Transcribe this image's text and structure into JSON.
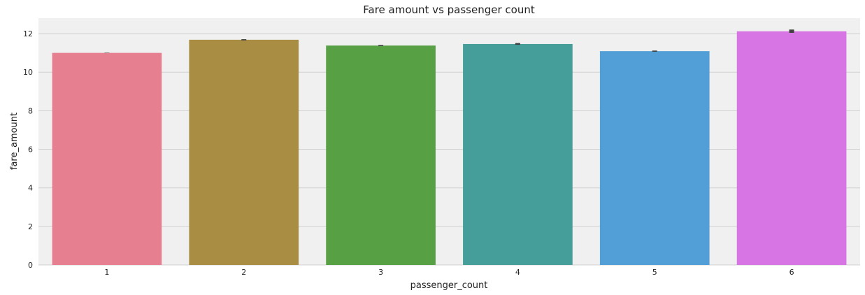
{
  "chart_data": {
    "type": "bar",
    "title": "Fare amount vs passenger count",
    "xlabel": "passenger_count",
    "ylabel": "fare_amount",
    "categories": [
      "1",
      "2",
      "3",
      "4",
      "5",
      "6"
    ],
    "values": [
      11.0,
      11.68,
      11.38,
      11.46,
      11.09,
      12.12
    ],
    "error_bars": [
      [
        10.99,
        11.01
      ],
      [
        11.65,
        11.71
      ],
      [
        11.35,
        11.41
      ],
      [
        11.42,
        11.51
      ],
      [
        11.06,
        11.12
      ],
      [
        12.04,
        12.21
      ]
    ],
    "ylim": [
      0,
      12.8
    ],
    "yticks": [
      0,
      2,
      4,
      6,
      8,
      10,
      12
    ],
    "grid": true,
    "colors": [
      "#e67f90",
      "#a88d42",
      "#58a044",
      "#459e99",
      "#519fd6",
      "#d875e4"
    ],
    "errorbar_color": "#404040",
    "background_color": "#f0f0f0",
    "grid_color": "#d0d0d0"
  }
}
